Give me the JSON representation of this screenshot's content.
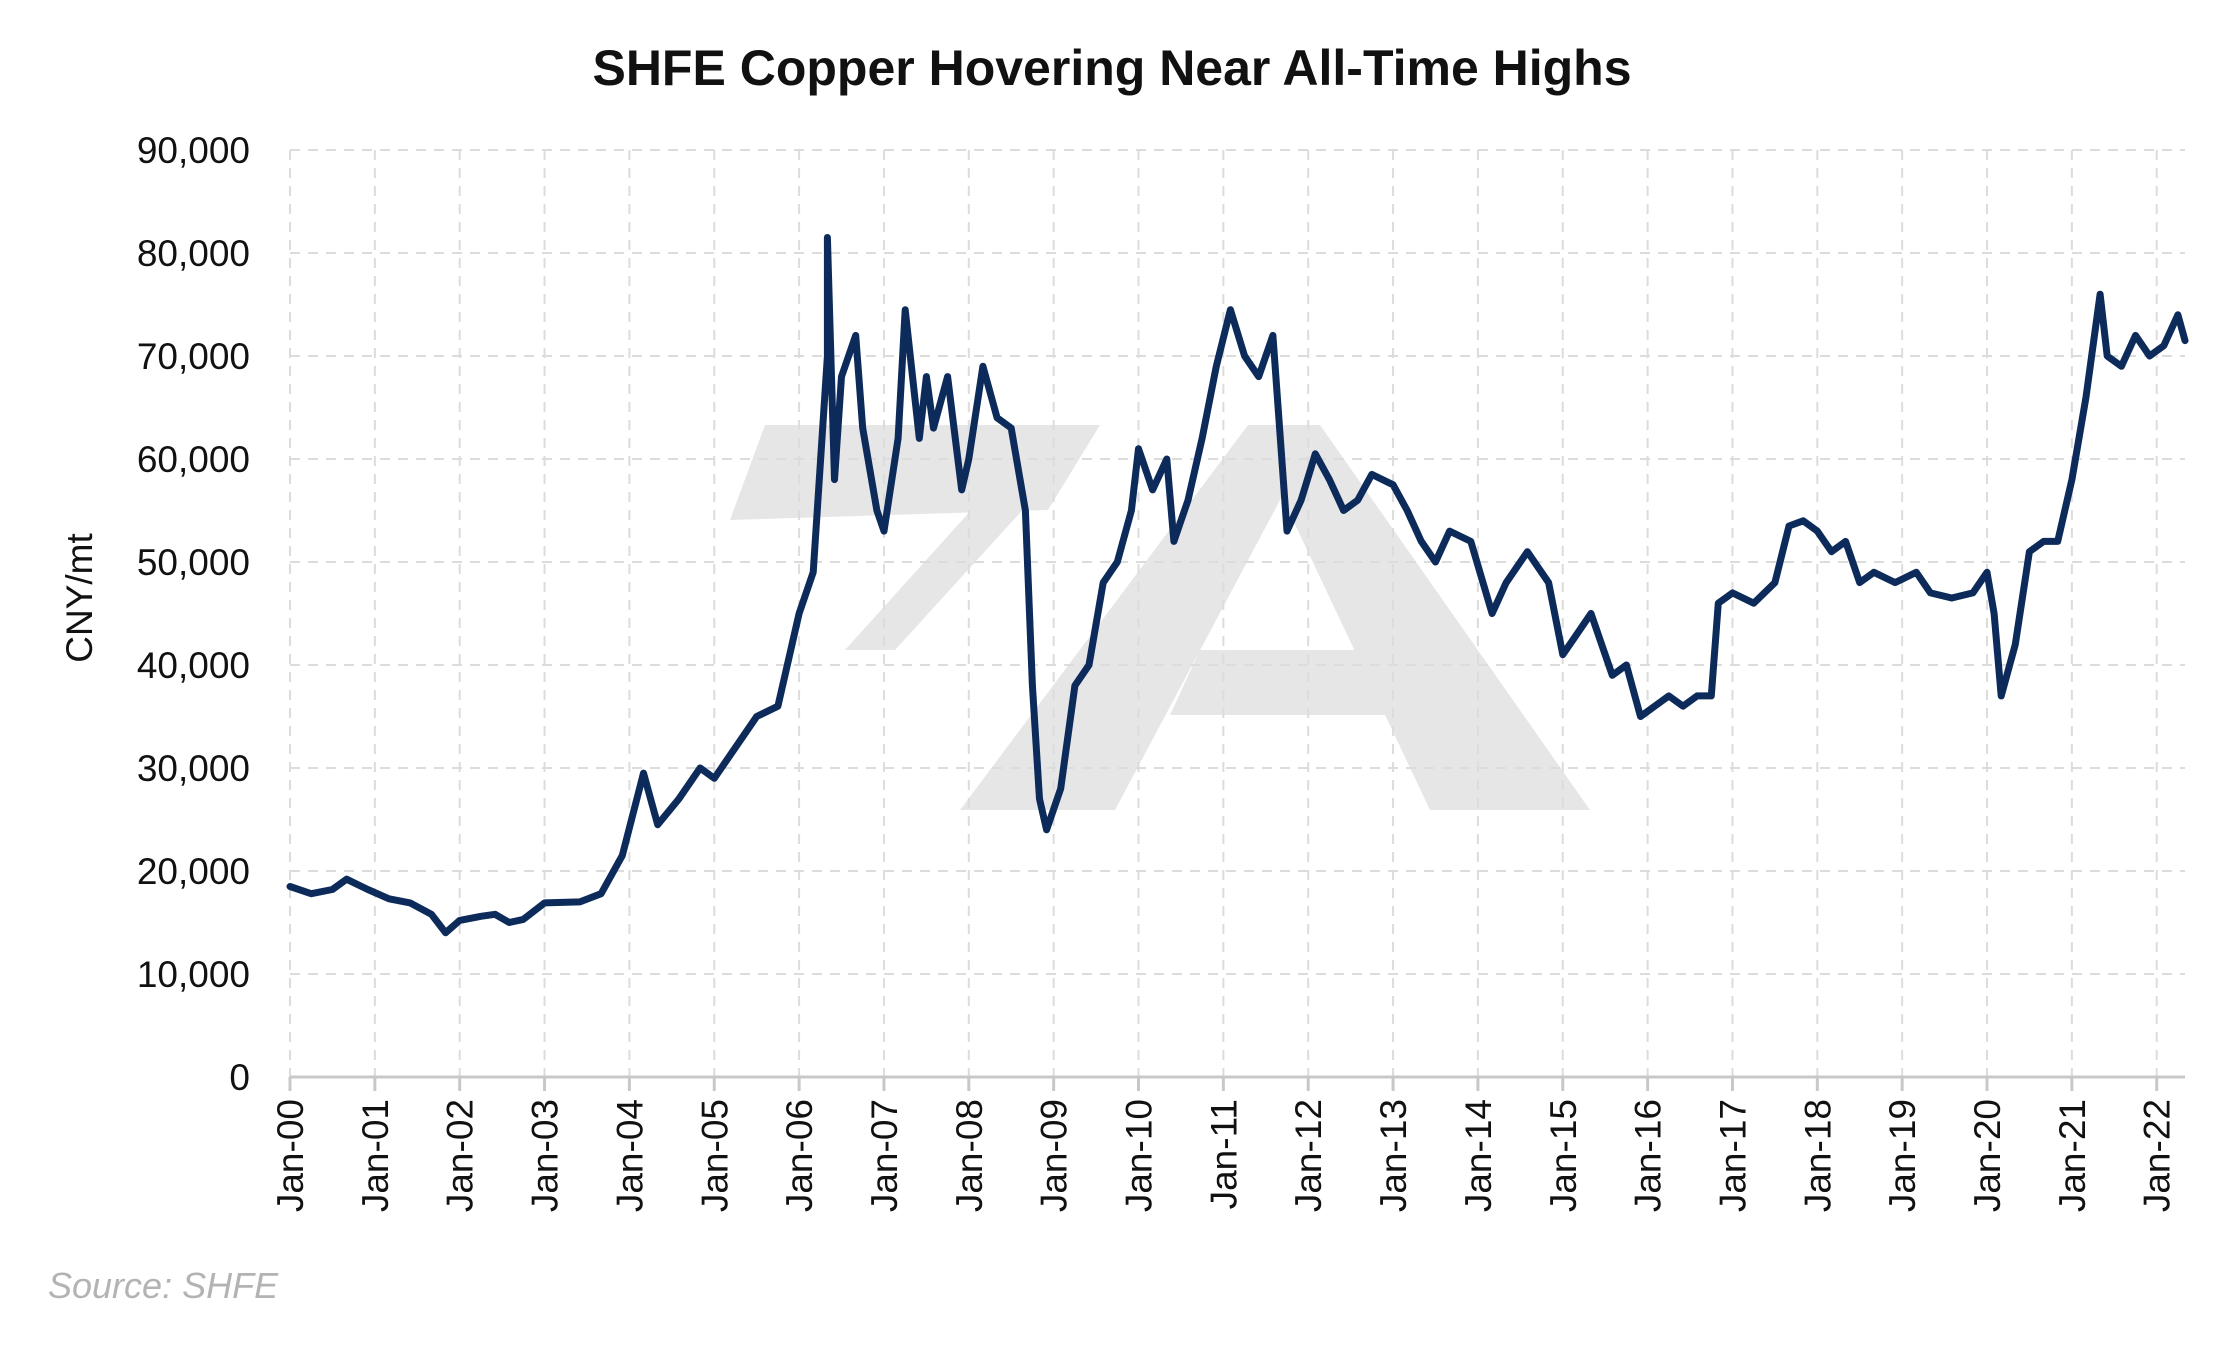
{
  "chart_data": {
    "type": "line",
    "title": "SHFE Copper Hovering Near All-Time Highs",
    "ylabel": "CNY/mt",
    "xlabel": "",
    "ylim": [
      0,
      90000
    ],
    "yticks": [
      "0",
      "10,000",
      "20,000",
      "30,000",
      "40,000",
      "50,000",
      "60,000",
      "70,000",
      "80,000",
      "90,000"
    ],
    "xticks": [
      "Jan-00",
      "Jan-01",
      "Jan-02",
      "Jan-03",
      "Jan-04",
      "Jan-05",
      "Jan-06",
      "Jan-07",
      "Jan-08",
      "Jan-09",
      "Jan-10",
      "Jan-11",
      "Jan-12",
      "Jan-13",
      "Jan-14",
      "Jan-15",
      "Jan-16",
      "Jan-17",
      "Jan-18",
      "Jan-19",
      "Jan-20",
      "Jan-21",
      "Jan-22"
    ],
    "xlim": [
      "2000-01",
      "2022-05"
    ],
    "grid": true,
    "series": [
      {
        "color": "#0d2b5a",
        "points": [
          [
            "2000-01",
            18500
          ],
          [
            "2000-04",
            17800
          ],
          [
            "2000-07",
            18200
          ],
          [
            "2000-09",
            19200
          ],
          [
            "2000-12",
            18200
          ],
          [
            "2001-03",
            17300
          ],
          [
            "2001-06",
            16900
          ],
          [
            "2001-09",
            15800
          ],
          [
            "2001-11",
            14000
          ],
          [
            "2002-01",
            15200
          ],
          [
            "2002-04",
            15600
          ],
          [
            "2002-06",
            15800
          ],
          [
            "2002-08",
            15000
          ],
          [
            "2002-10",
            15300
          ],
          [
            "2003-01",
            16900
          ],
          [
            "2003-06",
            17000
          ],
          [
            "2003-09",
            17800
          ],
          [
            "2003-12",
            21500
          ],
          [
            "2004-03",
            29500
          ],
          [
            "2004-05",
            24500
          ],
          [
            "2004-08",
            27000
          ],
          [
            "2004-11",
            30000
          ],
          [
            "2005-01",
            29000
          ],
          [
            "2005-04",
            32000
          ],
          [
            "2005-07",
            35000
          ],
          [
            "2005-10",
            36000
          ],
          [
            "2006-01",
            45000
          ],
          [
            "2006-03",
            49000
          ],
          [
            "2006-05",
            70000
          ],
          [
            "2006-05",
            81500
          ],
          [
            "2006-06",
            58000
          ],
          [
            "2006-07",
            68000
          ],
          [
            "2006-09",
            72000
          ],
          [
            "2006-10",
            63000
          ],
          [
            "2006-12",
            55000
          ],
          [
            "2007-01",
            53000
          ],
          [
            "2007-03",
            62000
          ],
          [
            "2007-04",
            74500
          ],
          [
            "2007-06",
            62000
          ],
          [
            "2007-07",
            68000
          ],
          [
            "2007-08",
            63000
          ],
          [
            "2007-10",
            68000
          ],
          [
            "2007-12",
            57000
          ],
          [
            "2008-01",
            60000
          ],
          [
            "2008-03",
            69000
          ],
          [
            "2008-05",
            64000
          ],
          [
            "2008-07",
            63000
          ],
          [
            "2008-09",
            55000
          ],
          [
            "2008-10",
            38000
          ],
          [
            "2008-11",
            27000
          ],
          [
            "2008-12",
            24000
          ],
          [
            "2009-02",
            28000
          ],
          [
            "2009-04",
            38000
          ],
          [
            "2009-06",
            40000
          ],
          [
            "2009-08",
            48000
          ],
          [
            "2009-10",
            50000
          ],
          [
            "2009-12",
            55000
          ],
          [
            "2010-01",
            61000
          ],
          [
            "2010-03",
            57000
          ],
          [
            "2010-05",
            60000
          ],
          [
            "2010-06",
            52000
          ],
          [
            "2010-08",
            56000
          ],
          [
            "2010-10",
            62000
          ],
          [
            "2010-12",
            69000
          ],
          [
            "2011-02",
            74500
          ],
          [
            "2011-04",
            70000
          ],
          [
            "2011-06",
            68000
          ],
          [
            "2011-08",
            72000
          ],
          [
            "2011-10",
            53000
          ],
          [
            "2011-12",
            56000
          ],
          [
            "2012-02",
            60500
          ],
          [
            "2012-04",
            58000
          ],
          [
            "2012-06",
            55000
          ],
          [
            "2012-08",
            56000
          ],
          [
            "2012-10",
            58500
          ],
          [
            "2013-01",
            57500
          ],
          [
            "2013-03",
            55000
          ],
          [
            "2013-05",
            52000
          ],
          [
            "2013-07",
            50000
          ],
          [
            "2013-09",
            53000
          ],
          [
            "2013-12",
            52000
          ],
          [
            "2014-03",
            45000
          ],
          [
            "2014-05",
            48000
          ],
          [
            "2014-08",
            51000
          ],
          [
            "2014-11",
            48000
          ],
          [
            "2015-01",
            41000
          ],
          [
            "2015-03",
            43000
          ],
          [
            "2015-05",
            45000
          ],
          [
            "2015-08",
            39000
          ],
          [
            "2015-10",
            40000
          ],
          [
            "2015-12",
            35000
          ],
          [
            "2016-02",
            36000
          ],
          [
            "2016-04",
            37000
          ],
          [
            "2016-06",
            36000
          ],
          [
            "2016-08",
            37000
          ],
          [
            "2016-10",
            37000
          ],
          [
            "2016-11",
            46000
          ],
          [
            "2017-01",
            47000
          ],
          [
            "2017-04",
            46000
          ],
          [
            "2017-07",
            48000
          ],
          [
            "2017-09",
            53500
          ],
          [
            "2017-11",
            54000
          ],
          [
            "2018-01",
            53000
          ],
          [
            "2018-03",
            51000
          ],
          [
            "2018-05",
            52000
          ],
          [
            "2018-07",
            48000
          ],
          [
            "2018-09",
            49000
          ],
          [
            "2018-12",
            48000
          ],
          [
            "2019-03",
            49000
          ],
          [
            "2019-05",
            47000
          ],
          [
            "2019-08",
            46500
          ],
          [
            "2019-11",
            47000
          ],
          [
            "2020-01",
            49000
          ],
          [
            "2020-02",
            45000
          ],
          [
            "2020-03",
            37000
          ],
          [
            "2020-05",
            42000
          ],
          [
            "2020-07",
            51000
          ],
          [
            "2020-09",
            52000
          ],
          [
            "2020-11",
            52000
          ],
          [
            "2021-01",
            58000
          ],
          [
            "2021-03",
            66000
          ],
          [
            "2021-05",
            76000
          ],
          [
            "2021-06",
            70000
          ],
          [
            "2021-08",
            69000
          ],
          [
            "2021-10",
            72000
          ],
          [
            "2021-12",
            70000
          ],
          [
            "2022-02",
            71000
          ],
          [
            "2022-04",
            74000
          ],
          [
            "2022-05",
            71500
          ]
        ]
      }
    ]
  },
  "source": "Source: SHFE",
  "watermark_logo": "7A"
}
